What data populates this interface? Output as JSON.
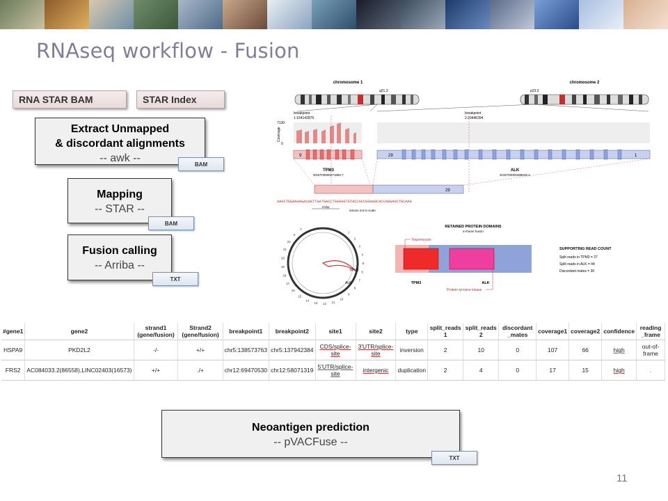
{
  "slide": {
    "title": "RNAseq workflow - Fusion",
    "page_number": "11"
  },
  "inputs": {
    "bam": "RNA STAR BAM",
    "index": "STAR Index"
  },
  "steps": [
    {
      "line1": "Extract Unmapped",
      "line2": "& discordant alignments",
      "tool": "-- awk --",
      "output": "BAM"
    },
    {
      "line1": "Mapping",
      "tool": "-- STAR --",
      "output": "BAM"
    },
    {
      "line1": "Fusion calling",
      "tool": "-- Arriba --",
      "output": "TXT"
    },
    {
      "line1": "Neoantigen prediction",
      "tool": "-- pVACFuse --",
      "output": "TXT"
    }
  ],
  "figure": {
    "chromosome1": "chromosome 1",
    "chromosome2": "chromosome 2",
    "band1": "q21.3",
    "band2": "p23.2",
    "breakpoint1_label": "breakpoint",
    "breakpoint1_pos": "1:154142876",
    "breakpoint2_label": "breakpoint",
    "breakpoint2_pos": "2:29446394",
    "coverage_label": "Coverage",
    "coverage_max": "7130",
    "coverage_min": "0",
    "gene1": "TPM3",
    "gene1_transcript": "ENST00000271850.7",
    "gene2": "ALK",
    "gene2_transcript": "ENST00000389048.3",
    "exon_left": "9",
    "exon_right": "29",
    "exon_last": "1",
    "sequence": "AAGCTGGAAAAGACAATTGATGACCTGGAAGTGTACCGCCGGAAGCACCAGGAGCTGCAAG",
    "scale": "3 kbp",
    "introns_note": "introns not to scale",
    "domains_title": "RETAINED PROTEIN DOMAINS",
    "domains_subtitle": "in-frame fusion",
    "domain1": "Tropomyosin",
    "domain2": "Protein tyrosine kinase",
    "protein_gene1": "TPM3",
    "protein_gene2": "ALK",
    "support_title": "SUPPORTING READ COUNT",
    "support_lines": [
      "Split reads in TPM3 = 27",
      "Split reads in ALK = 44",
      "Discordant mates = 30"
    ],
    "circos_labels": [
      "1",
      "2",
      "3",
      "4",
      "5",
      "6",
      "7",
      "8",
      "9",
      "10",
      "11",
      "12",
      "13",
      "14",
      "15",
      "16",
      "17",
      "18",
      "19",
      "20",
      "21",
      "22",
      "X",
      "Y"
    ],
    "circos_gene1": "TPM3",
    "circos_gene2": "ALK"
  },
  "table": {
    "headers": [
      "#gene1",
      "gene2",
      "strand1 (gene/fusion)",
      "Strand2 (gene/fusion)",
      "breakpoint1",
      "breakpoint2",
      "site1",
      "site2",
      "type",
      "split_reads 1",
      "split_reads 2",
      "discordant _mates",
      "coverage1",
      "coverage2",
      "confidence",
      "reading _frame"
    ],
    "rows": [
      [
        "HSPA9",
        "PKD2L2",
        "-/-",
        "+/+",
        "chr5:138573763",
        "chr5:137942384",
        "CDS/splice-site",
        "3'UTR/splice-site",
        "inversion",
        "2",
        "10",
        "0",
        "107",
        "66",
        "high",
        "out-of-frame"
      ],
      [
        "FRS2",
        "AC084033.2(86558),LINC02403(16573)",
        "+/+",
        "./+",
        "chr12:69470530",
        "chr12:58071319",
        "5'UTR/splice-site",
        "intergenic",
        "duplication",
        "2",
        "4",
        "0",
        "17",
        "15",
        "high",
        "."
      ]
    ]
  },
  "colors": {
    "title": "#7f7f9a",
    "gene1": "#e06666",
    "gene2": "#8fa3d9"
  }
}
